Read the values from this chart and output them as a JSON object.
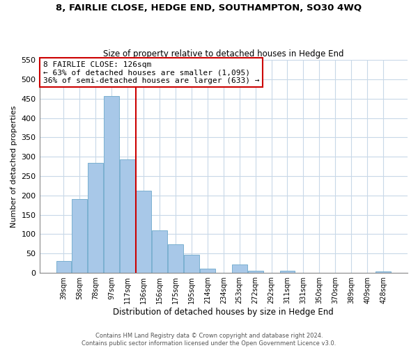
{
  "title": "8, FAIRLIE CLOSE, HEDGE END, SOUTHAMPTON, SO30 4WQ",
  "subtitle": "Size of property relative to detached houses in Hedge End",
  "xlabel": "Distribution of detached houses by size in Hedge End",
  "ylabel": "Number of detached properties",
  "bar_color": "#a8c8e8",
  "bar_edge_color": "#7ab0d0",
  "vline_color": "#cc0000",
  "vline_x": 4.5,
  "categories": [
    "39sqm",
    "58sqm",
    "78sqm",
    "97sqm",
    "117sqm",
    "136sqm",
    "156sqm",
    "175sqm",
    "195sqm",
    "214sqm",
    "234sqm",
    "253sqm",
    "272sqm",
    "292sqm",
    "311sqm",
    "331sqm",
    "350sqm",
    "370sqm",
    "389sqm",
    "409sqm",
    "428sqm"
  ],
  "values": [
    30,
    190,
    285,
    457,
    293,
    213,
    110,
    74,
    46,
    11,
    0,
    22,
    6,
    0,
    5,
    0,
    0,
    0,
    0,
    0,
    4
  ],
  "ylim": [
    0,
    550
  ],
  "yticks": [
    0,
    50,
    100,
    150,
    200,
    250,
    300,
    350,
    400,
    450,
    500,
    550
  ],
  "annotation_title": "8 FAIRLIE CLOSE: 126sqm",
  "annotation_line1": "← 63% of detached houses are smaller (1,095)",
  "annotation_line2": "36% of semi-detached houses are larger (633) →",
  "footer_line1": "Contains HM Land Registry data © Crown copyright and database right 2024.",
  "footer_line2": "Contains public sector information licensed under the Open Government Licence v3.0.",
  "background_color": "#ffffff",
  "grid_color": "#c8d8e8"
}
